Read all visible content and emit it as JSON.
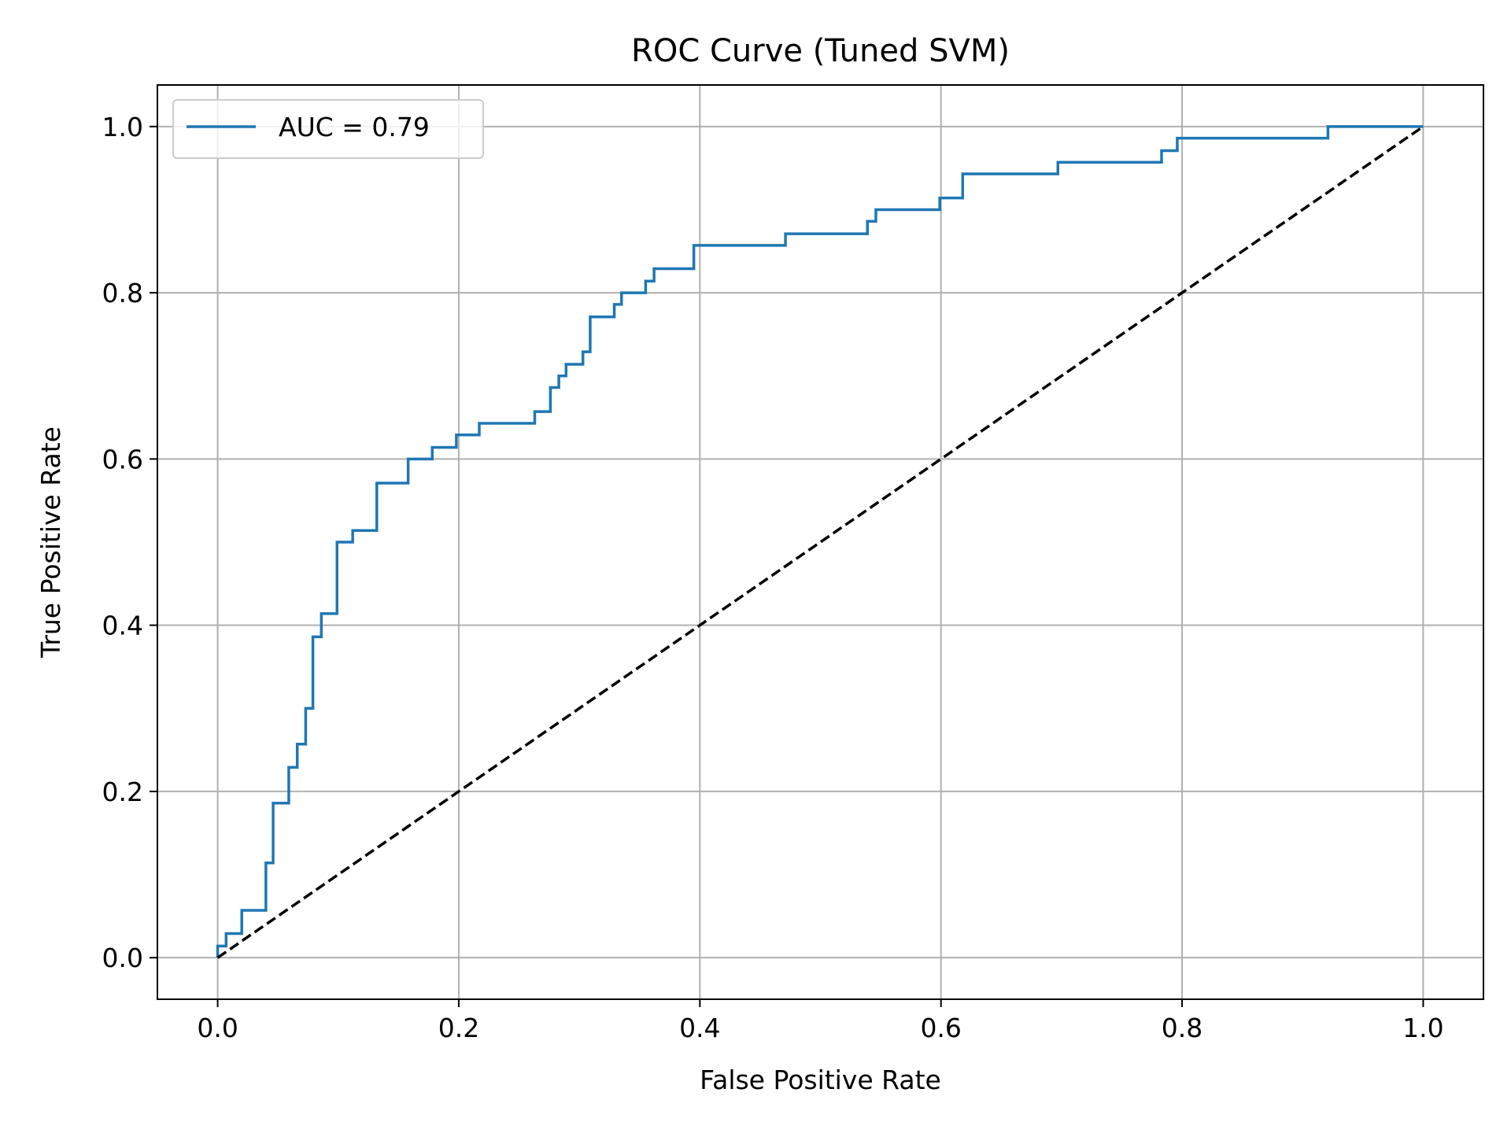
{
  "chart_data": {
    "type": "line",
    "title": "ROC Curve (Tuned SVM)",
    "xlabel": "False Positive Rate",
    "ylabel": "True Positive Rate",
    "xlim": [
      -0.05,
      1.05
    ],
    "ylim": [
      -0.05,
      1.05
    ],
    "xticks": [
      0.0,
      0.2,
      0.4,
      0.6,
      0.8,
      1.0
    ],
    "yticks": [
      0.0,
      0.2,
      0.4,
      0.6,
      0.8,
      1.0
    ],
    "xtick_labels": [
      "0.0",
      "0.2",
      "0.4",
      "0.6",
      "0.8",
      "1.0"
    ],
    "ytick_labels": [
      "0.0",
      "0.2",
      "0.4",
      "0.6",
      "0.8",
      "1.0"
    ],
    "grid": true,
    "legend_position": "upper-left",
    "series": [
      {
        "name": "AUC = 0.79",
        "color": "#1f77b4",
        "style": "solid",
        "x": [
          0.0,
          0.0,
          0.007,
          0.007,
          0.02,
          0.02,
          0.04,
          0.04,
          0.046,
          0.046,
          0.059,
          0.059,
          0.066,
          0.066,
          0.073,
          0.073,
          0.079,
          0.079,
          0.086,
          0.086,
          0.099,
          0.099,
          0.112,
          0.112,
          0.132,
          0.132,
          0.158,
          0.158,
          0.178,
          0.178,
          0.198,
          0.198,
          0.217,
          0.217,
          0.263,
          0.263,
          0.276,
          0.276,
          0.283,
          0.283,
          0.289,
          0.289,
          0.303,
          0.303,
          0.309,
          0.309,
          0.329,
          0.329,
          0.335,
          0.335,
          0.355,
          0.355,
          0.362,
          0.362,
          0.395,
          0.395,
          0.471,
          0.471,
          0.539,
          0.539,
          0.546,
          0.546,
          0.599,
          0.599,
          0.618,
          0.618,
          0.697,
          0.697,
          0.783,
          0.783,
          0.796,
          0.796,
          0.921,
          0.921,
          1.0
        ],
        "y": [
          0.0,
          0.014,
          0.014,
          0.029,
          0.029,
          0.057,
          0.057,
          0.114,
          0.114,
          0.186,
          0.186,
          0.229,
          0.229,
          0.257,
          0.257,
          0.3,
          0.3,
          0.386,
          0.386,
          0.414,
          0.414,
          0.5,
          0.5,
          0.514,
          0.514,
          0.571,
          0.571,
          0.6,
          0.6,
          0.614,
          0.614,
          0.629,
          0.629,
          0.643,
          0.643,
          0.657,
          0.657,
          0.686,
          0.686,
          0.7,
          0.7,
          0.714,
          0.714,
          0.729,
          0.729,
          0.771,
          0.771,
          0.786,
          0.786,
          0.8,
          0.8,
          0.814,
          0.814,
          0.829,
          0.829,
          0.857,
          0.857,
          0.871,
          0.871,
          0.886,
          0.886,
          0.9,
          0.9,
          0.914,
          0.914,
          0.943,
          0.943,
          0.957,
          0.957,
          0.971,
          0.971,
          0.986,
          0.986,
          1.0,
          1.0
        ]
      },
      {
        "name": "",
        "color": "#000000",
        "style": "dashed",
        "x": [
          0.0,
          1.0
        ],
        "y": [
          0.0,
          1.0
        ]
      }
    ]
  }
}
